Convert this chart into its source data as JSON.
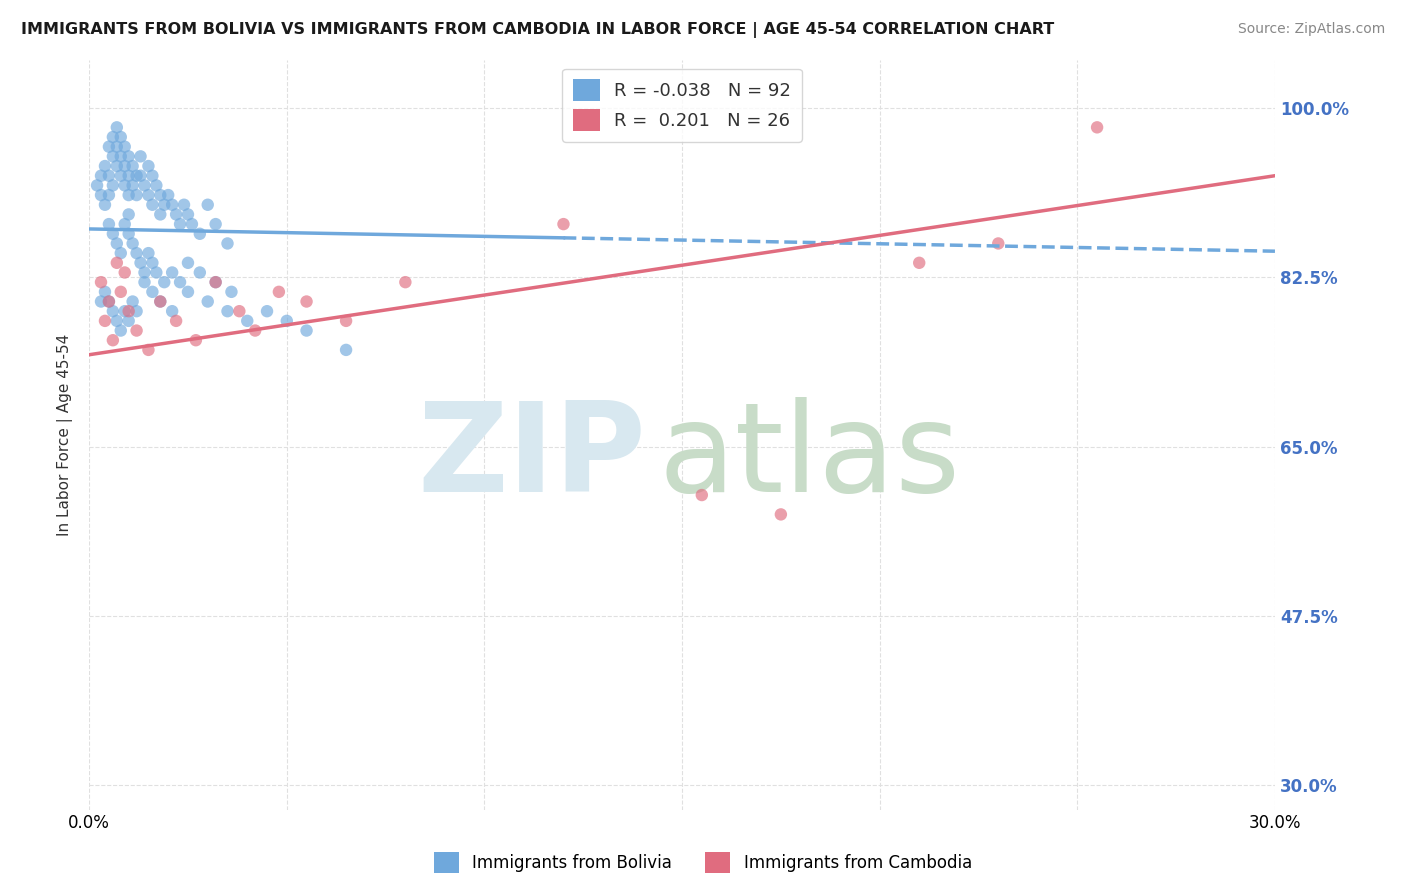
{
  "title": "IMMIGRANTS FROM BOLIVIA VS IMMIGRANTS FROM CAMBODIA IN LABOR FORCE | AGE 45-54 CORRELATION CHART",
  "source": "Source: ZipAtlas.com",
  "ylabel": "In Labor Force | Age 45-54",
  "xlim": [
    0.0,
    0.3
  ],
  "ylim": [
    0.275,
    1.05
  ],
  "xticks": [
    0.0,
    0.05,
    0.1,
    0.15,
    0.2,
    0.25,
    0.3
  ],
  "xticklabels": [
    "0.0%",
    "",
    "",
    "",
    "",
    "",
    "30.0%"
  ],
  "ytick_positions": [
    0.3,
    0.475,
    0.65,
    0.825,
    1.0
  ],
  "yticklabels": [
    "30.0%",
    "47.5%",
    "65.0%",
    "82.5%",
    "100.0%"
  ],
  "bolivia_color": "#6fa8dc",
  "cambodia_color": "#e06c7f",
  "bolivia_R": -0.038,
  "bolivia_N": 92,
  "cambodia_R": 0.201,
  "cambodia_N": 26,
  "bolivia_trend_y0": 0.875,
  "bolivia_trend_y1": 0.852,
  "cambodia_trend_y0": 0.745,
  "cambodia_trend_y1": 0.93,
  "bolivia_scatter_x": [
    0.002,
    0.003,
    0.003,
    0.004,
    0.004,
    0.005,
    0.005,
    0.005,
    0.006,
    0.006,
    0.006,
    0.007,
    0.007,
    0.007,
    0.008,
    0.008,
    0.008,
    0.009,
    0.009,
    0.009,
    0.01,
    0.01,
    0.01,
    0.01,
    0.011,
    0.011,
    0.012,
    0.012,
    0.013,
    0.013,
    0.014,
    0.015,
    0.015,
    0.016,
    0.016,
    0.017,
    0.018,
    0.018,
    0.019,
    0.02,
    0.021,
    0.022,
    0.023,
    0.024,
    0.025,
    0.026,
    0.028,
    0.03,
    0.032,
    0.035,
    0.005,
    0.006,
    0.007,
    0.008,
    0.009,
    0.01,
    0.011,
    0.012,
    0.013,
    0.014,
    0.015,
    0.016,
    0.017,
    0.019,
    0.021,
    0.023,
    0.025,
    0.028,
    0.032,
    0.036,
    0.003,
    0.004,
    0.005,
    0.006,
    0.007,
    0.008,
    0.009,
    0.01,
    0.011,
    0.012,
    0.014,
    0.016,
    0.018,
    0.021,
    0.025,
    0.03,
    0.035,
    0.04,
    0.045,
    0.05,
    0.055,
    0.065
  ],
  "bolivia_scatter_y": [
    0.92,
    0.91,
    0.93,
    0.9,
    0.94,
    0.96,
    0.93,
    0.91,
    0.97,
    0.95,
    0.92,
    0.98,
    0.96,
    0.94,
    0.97,
    0.95,
    0.93,
    0.96,
    0.94,
    0.92,
    0.95,
    0.93,
    0.91,
    0.89,
    0.94,
    0.92,
    0.93,
    0.91,
    0.95,
    0.93,
    0.92,
    0.94,
    0.91,
    0.93,
    0.9,
    0.92,
    0.91,
    0.89,
    0.9,
    0.91,
    0.9,
    0.89,
    0.88,
    0.9,
    0.89,
    0.88,
    0.87,
    0.9,
    0.88,
    0.86,
    0.88,
    0.87,
    0.86,
    0.85,
    0.88,
    0.87,
    0.86,
    0.85,
    0.84,
    0.83,
    0.85,
    0.84,
    0.83,
    0.82,
    0.83,
    0.82,
    0.84,
    0.83,
    0.82,
    0.81,
    0.8,
    0.81,
    0.8,
    0.79,
    0.78,
    0.77,
    0.79,
    0.78,
    0.8,
    0.79,
    0.82,
    0.81,
    0.8,
    0.79,
    0.81,
    0.8,
    0.79,
    0.78,
    0.79,
    0.78,
    0.77,
    0.75
  ],
  "cambodia_scatter_x": [
    0.003,
    0.004,
    0.005,
    0.006,
    0.007,
    0.008,
    0.009,
    0.01,
    0.012,
    0.015,
    0.018,
    0.022,
    0.027,
    0.032,
    0.038,
    0.042,
    0.048,
    0.055,
    0.065,
    0.08,
    0.12,
    0.155,
    0.175,
    0.21,
    0.23,
    0.255
  ],
  "cambodia_scatter_y": [
    0.82,
    0.78,
    0.8,
    0.76,
    0.84,
    0.81,
    0.83,
    0.79,
    0.77,
    0.75,
    0.8,
    0.78,
    0.76,
    0.82,
    0.79,
    0.77,
    0.81,
    0.8,
    0.78,
    0.82,
    0.88,
    0.6,
    0.58,
    0.84,
    0.86,
    0.98
  ],
  "watermark_zip_color": "#d8e8f0",
  "watermark_atlas_color": "#c8dcc8",
  "background_color": "#ffffff",
  "grid_color": "#e0e0e0"
}
